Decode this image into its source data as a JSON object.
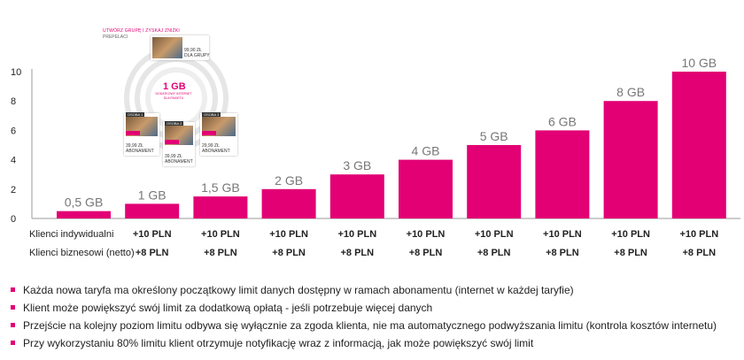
{
  "chart_data": {
    "type": "bar",
    "categories": [
      "0,5 GB",
      "1 GB",
      "1,5 GB",
      "2 GB",
      "3 GB",
      "4 GB",
      "5 GB",
      "6 GB",
      "8 GB",
      "10 GB"
    ],
    "values": [
      0.5,
      1,
      1.5,
      2,
      3,
      4,
      5,
      6,
      8,
      10
    ],
    "data_labels": [
      "0,5 GB",
      "1 GB",
      "1,5 GB",
      "2 GB",
      "3 GB",
      "4 GB",
      "5 GB",
      "6 GB",
      "8 GB",
      "10 GB"
    ],
    "yticks": [
      "0",
      "2",
      "4",
      "6",
      "8",
      "10"
    ],
    "ylim": [
      0,
      10
    ],
    "bar_color": "#e20074",
    "title": "",
    "xlabel": "",
    "ylabel": ""
  },
  "promo": {
    "title": "UTWÓRZ GRUPĘ I ZYSKAJ ZNIŻKI",
    "subtitle": "PREPELACI",
    "center_gb": "1 GB",
    "center_text": "DODATKOWY INTERNET DLA PAKIETU",
    "cards": [
      {
        "tag": "",
        "price": "99,90 ZŁ",
        "text": "DLA GRUPY"
      },
      {
        "tag": "OSOBA 1",
        "price": "39,99 ZŁ",
        "text": "ABONAMENT"
      },
      {
        "tag": "OSOBA 2",
        "price": "39,99 ZŁ",
        "text": "ABONAMENT"
      },
      {
        "tag": "OSOBA 3",
        "price": "29,99 ZŁ",
        "text": "ABONAMENT"
      }
    ]
  },
  "rows": [
    {
      "label": "Klienci indywidualni",
      "values": [
        "+10 PLN",
        "+10 PLN",
        "+10 PLN",
        "+10 PLN",
        "+10 PLN",
        "+10 PLN",
        "+10 PLN",
        "+10 PLN",
        "+10 PLN"
      ]
    },
    {
      "label": "Klienci biznesowi (netto)",
      "values": [
        "+8 PLN",
        "+8 PLN",
        "+8 PLN",
        "+8 PLN",
        "+8 PLN",
        "+8 PLN",
        "+8 PLN",
        "+8 PLN",
        "+8 PLN"
      ]
    }
  ],
  "bullets": [
    "Każda nowa taryfa ma określony początkowy  limit danych dostępny w ramach abonamentu (internet w każdej taryfie)",
    "Klient może powiększyć swój limit za dodatkową opłatą - jeśli potrzebuje więcej danych",
    "Przejście na kolejny poziom limitu odbywa się wyłącznie za zgoda klienta, nie ma automatycznego podwyższania limitu (kontrola kosztów internetu)",
    "Przy wykorzystaniu 80% limitu klient otrzymuje notyfikację wraz z informacją, jak może powiększyć swój limit"
  ]
}
